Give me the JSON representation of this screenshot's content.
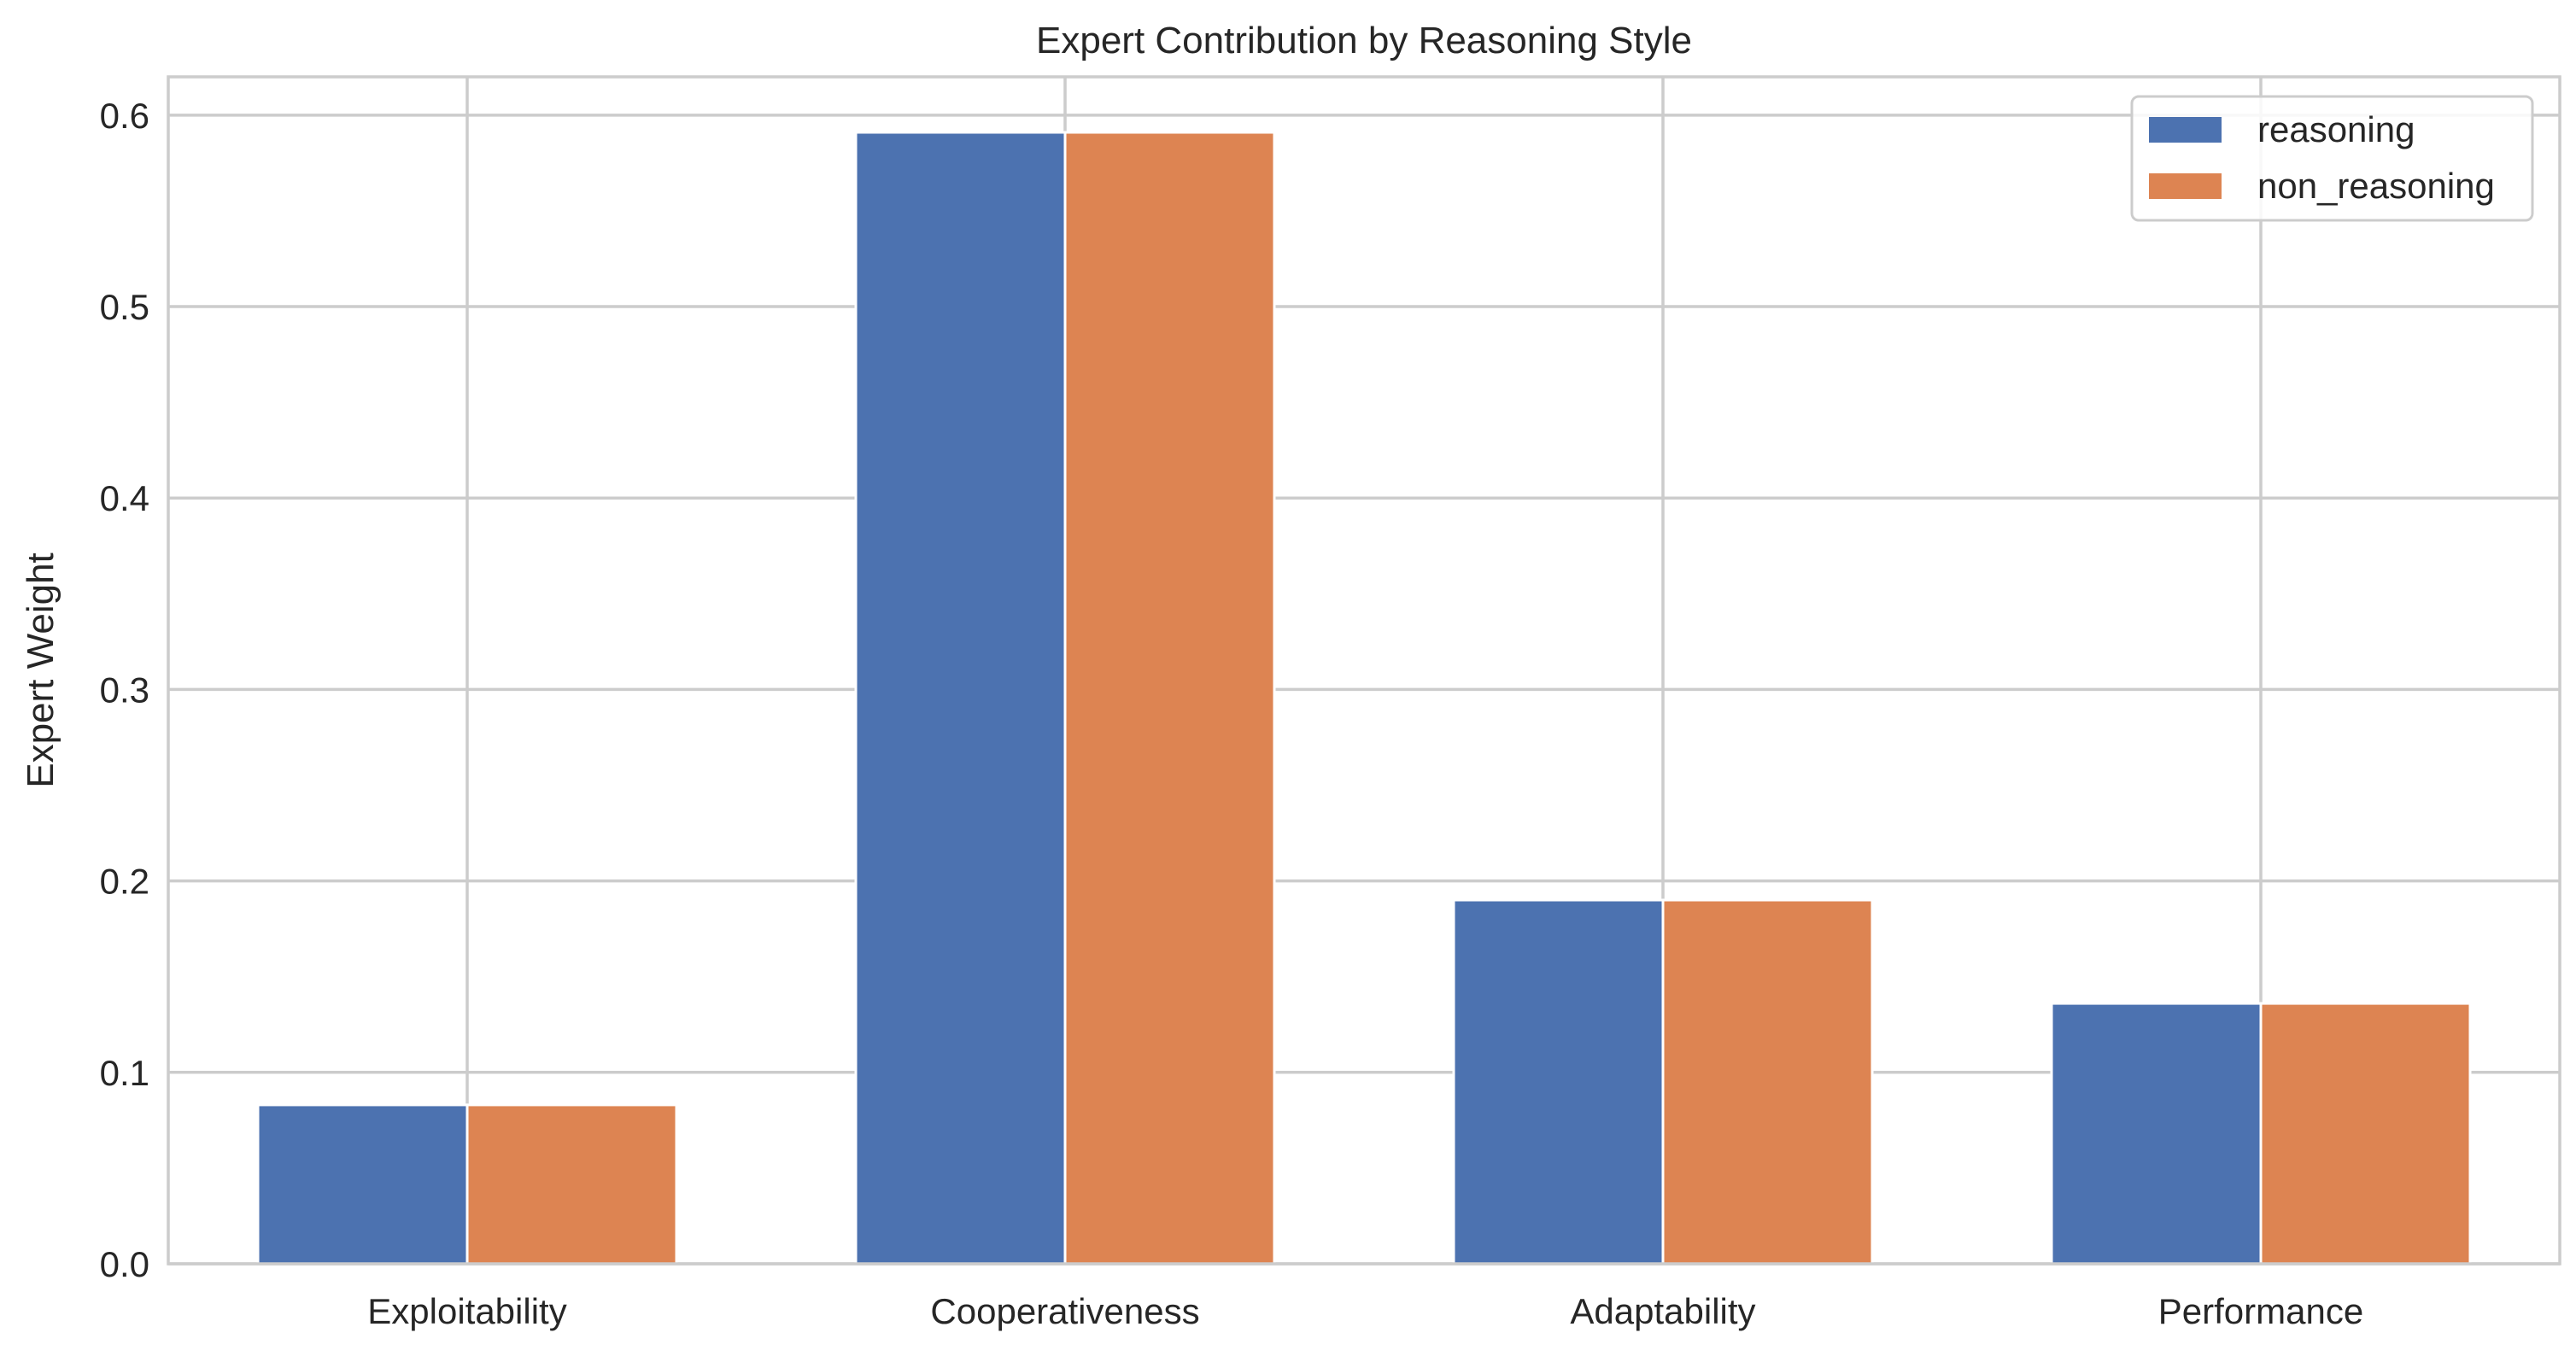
{
  "chart_data": {
    "type": "bar",
    "title": "Expert Contribution by Reasoning Style",
    "xlabel": "",
    "ylabel": "Expert Weight",
    "categories": [
      "Exploitability",
      "Cooperativeness",
      "Adaptability",
      "Performance"
    ],
    "series": [
      {
        "name": "reasoning",
        "color": "#4c72b0",
        "values": [
          0.083,
          0.591,
          0.19,
          0.136
        ]
      },
      {
        "name": "non_reasoning",
        "color": "#dd8452",
        "values": [
          0.083,
          0.591,
          0.19,
          0.136
        ]
      }
    ],
    "ylim": [
      0.0,
      0.62
    ],
    "yticks": [
      "0.0",
      "0.1",
      "0.2",
      "0.3",
      "0.4",
      "0.5",
      "0.6"
    ],
    "grid": true,
    "legend_position": "top-right"
  }
}
